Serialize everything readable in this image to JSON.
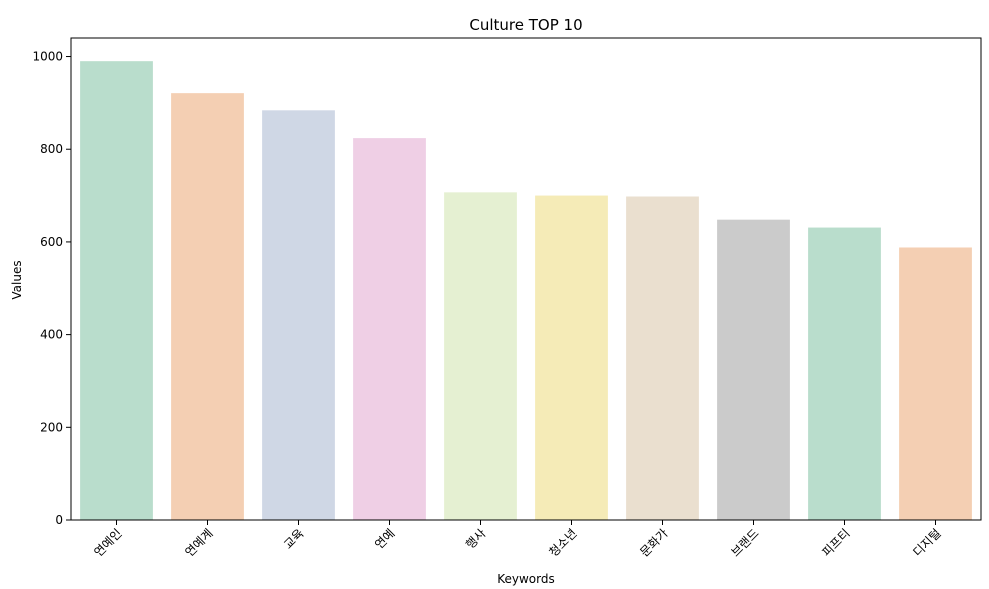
{
  "chart_data": {
    "type": "bar",
    "title": "Culture TOP 10",
    "xlabel": "Keywords",
    "ylabel": "Values",
    "categories": [
      "연예인",
      "연예계",
      "교육",
      "연예",
      "행사",
      "청소년",
      "문화가",
      "브랜드",
      "피프티",
      "디지털"
    ],
    "values": [
      990,
      921,
      884,
      824,
      707,
      700,
      698,
      648,
      631,
      588
    ],
    "ylim": [
      0,
      1040
    ],
    "yticks": [
      0,
      200,
      400,
      600,
      800,
      1000
    ],
    "grid": false,
    "colors": [
      "#b9ddcc",
      "#f4cfb3",
      "#cfd7e5",
      "#efcfe5",
      "#e5f0d2",
      "#f5ebb7",
      "#eadfcf",
      "#cbcbcb",
      "#b9ddcc",
      "#f4cfb3"
    ]
  }
}
